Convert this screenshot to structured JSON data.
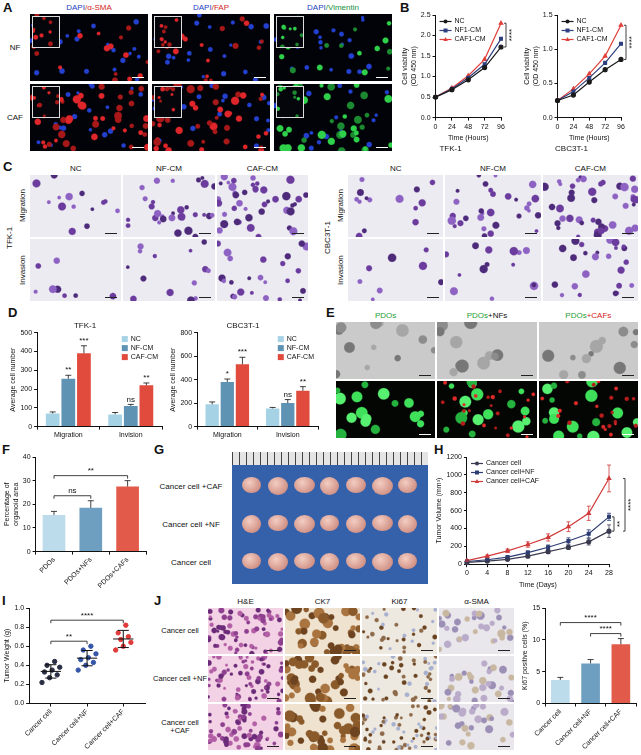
{
  "image_panels": [
    {
      "panel": "A",
      "type": "fluorescence",
      "columns": [
        "DAPI/α-SMA",
        "DAPI/FAP",
        "DAPI/Vimentin"
      ],
      "rows": [
        "NF",
        "CAF"
      ]
    },
    {
      "panel": "C",
      "type": "transwell",
      "groups": [
        {
          "name": "TFK-1",
          "columns": [
            "NC",
            "NF-CM",
            "CAF-CM"
          ],
          "rows": [
            "Migration",
            "Invasion"
          ]
        },
        {
          "name": "CBC3T-1",
          "columns": [
            "NC",
            "NF-CM",
            "CAF-CM"
          ],
          "rows": [
            "Migration",
            "Invasion"
          ]
        }
      ]
    },
    {
      "panel": "E",
      "type": "organoids",
      "columns": [
        "PDOs",
        "PDOs+NFs",
        "PDOs+CAFs"
      ]
    },
    {
      "panel": "G",
      "type": "tumor_photo",
      "rows": [
        "Cancer cell +CAF",
        "Cancer cell +NF",
        "Cancer cell"
      ]
    },
    {
      "panel": "J",
      "type": "ihc",
      "columns": [
        "H&E",
        "CK7",
        "Ki67",
        "α-SMA"
      ],
      "rows": [
        "Cancer cell",
        "Cancer cell +NF",
        "Cancer cell +CAF"
      ]
    }
  ],
  "chart_data": [
    {
      "panel": "B",
      "type": "line",
      "title": "TFK-1",
      "x_label": "Time (Hours)",
      "y_label": "Cell viability (OD 450 nm)",
      "x": [
        0,
        24,
        48,
        72,
        96
      ],
      "xlim": [
        0,
        96
      ],
      "xticks": [
        0,
        24,
        48,
        72,
        96
      ],
      "ylim": [
        0,
        2.5
      ],
      "yticks": [
        {
          "value": 0,
          "label": "0.0"
        },
        0.5,
        {
          "value": 1,
          "label": "1.0"
        },
        1.5,
        {
          "value": 2,
          "label": "2.0"
        },
        2.5
      ],
      "grid": false,
      "legend": "upper left",
      "series": [
        {
          "name": "NC",
          "color": "#1a1a1a",
          "marker": "circle",
          "values": [
            0.5,
            0.68,
            0.92,
            1.22,
            1.72
          ]
        },
        {
          "name": "NF1-CM",
          "color": "#2e3f7f",
          "marker": "square",
          "values": [
            0.5,
            0.7,
            0.97,
            1.3,
            1.92
          ]
        },
        {
          "name": "CAF1-CM",
          "color": "#e0403a",
          "marker": "triangle",
          "values": [
            0.5,
            0.72,
            1.02,
            1.42,
            2.3
          ]
        }
      ],
      "annotations": [
        {
          "text": "****",
          "between": [
            0,
            2
          ]
        }
      ]
    },
    {
      "type": "line",
      "title": "CBC3T-1",
      "x_label": "Time (Hours)",
      "y_label": "Cell viability (OD 450 nm)",
      "x": [
        0,
        24,
        48,
        72,
        96
      ],
      "xlim": [
        0,
        96
      ],
      "xticks": [
        0,
        24,
        48,
        72,
        96
      ],
      "ylim": [
        0,
        1.5
      ],
      "yticks": [
        {
          "value": 0,
          "label": "0.0"
        },
        0.5,
        {
          "value": 1,
          "label": "1.0"
        },
        1.5
      ],
      "grid": false,
      "legend": "upper left",
      "series": [
        {
          "name": "NC",
          "color": "#1a1a1a",
          "marker": "circle",
          "values": [
            0.25,
            0.33,
            0.52,
            0.7,
            0.85
          ]
        },
        {
          "name": "NF1-CM",
          "color": "#2e3f7f",
          "marker": "square",
          "values": [
            0.25,
            0.38,
            0.58,
            0.8,
            1.08
          ]
        },
        {
          "name": "CAF1-CM",
          "color": "#e0403a",
          "marker": "triangle",
          "values": [
            0.25,
            0.42,
            0.64,
            0.9,
            1.35
          ]
        }
      ],
      "annotations": [
        {
          "text": "****",
          "between": [
            0,
            2
          ]
        }
      ]
    },
    {
      "panel": "D",
      "type": "bar",
      "title": "TFK-1",
      "y_label": "Average cell number",
      "categories": [
        "Migration",
        "Invision"
      ],
      "ylim": [
        0,
        500
      ],
      "yticks": [
        0,
        100,
        200,
        300,
        400,
        500
      ],
      "grid": false,
      "legend": "upper right",
      "series": [
        {
          "name": "NC",
          "color": "#a6d2e6",
          "values": [
            70,
            65
          ],
          "errors": [
            8,
            10
          ]
        },
        {
          "name": "NF-CM",
          "color": "#5f93b3",
          "values": [
            255,
            110
          ],
          "errors": [
            18,
            8
          ]
        },
        {
          "name": "CAF-CM",
          "color": "#e04b3d",
          "values": [
            390,
            220
          ],
          "errors": [
            40,
            12
          ]
        }
      ],
      "annotations": [
        {
          "text": "**",
          "series": 1,
          "index": 0
        },
        {
          "text": "***",
          "series": 2,
          "index": 0
        },
        {
          "text": "ns",
          "series": 1,
          "index": 1
        },
        {
          "text": "**",
          "series": 2,
          "index": 1
        }
      ]
    },
    {
      "type": "bar",
      "title": "CBC3T-1",
      "y_label": "Average cell number",
      "categories": [
        "Migration",
        "Invision"
      ],
      "ylim": [
        0,
        800
      ],
      "yticks": [
        0,
        200,
        400,
        600,
        800
      ],
      "grid": false,
      "legend": "upper right",
      "series": [
        {
          "name": "NC",
          "color": "#a6d2e6",
          "values": [
            190,
            155
          ],
          "errors": [
            20,
            8
          ]
        },
        {
          "name": "NF-CM",
          "color": "#5f93b3",
          "values": [
            380,
            200
          ],
          "errors": [
            25,
            30
          ]
        },
        {
          "name": "CAF-CM",
          "color": "#e04b3d",
          "values": [
            530,
            305
          ],
          "errors": [
            60,
            35
          ]
        }
      ],
      "annotations": [
        {
          "text": "*",
          "series": 1,
          "index": 0
        },
        {
          "text": "***",
          "series": 2,
          "index": 0
        },
        {
          "text": "ns",
          "series": 1,
          "index": 1
        },
        {
          "text": "**",
          "series": 2,
          "index": 1
        }
      ]
    },
    {
      "panel": "F",
      "type": "bar",
      "y_label": "Percentage of organoid area",
      "categories": [
        "PDOs",
        "PDOs+NFs",
        "PDOs+CAFs"
      ],
      "values": [
        15.5,
        18.5,
        27.5
      ],
      "errors": [
        1.5,
        3,
        2.5
      ],
      "colors": [
        "#bcdcec",
        "#6f9fc0",
        "#e25a4a"
      ],
      "ylim": [
        0,
        40
      ],
      "yticks": [
        0,
        10,
        20,
        30,
        40
      ],
      "grid": false,
      "annotations": [
        {
          "text": "ns",
          "between": [
            0,
            1
          ]
        },
        {
          "text": "**",
          "between": [
            0,
            2
          ]
        }
      ]
    },
    {
      "panel": "H",
      "type": "line",
      "x_label": "Time (Days)",
      "y_label": "Tumor Volume (mm³)",
      "x": [
        0,
        4,
        8,
        12,
        16,
        20,
        24,
        28
      ],
      "xlim": [
        0,
        28
      ],
      "xticks": [
        0,
        4,
        8,
        12,
        16,
        20,
        24,
        28
      ],
      "ylim": [
        0,
        1200
      ],
      "yticks": [
        0,
        200,
        400,
        600,
        800,
        1000,
        1200
      ],
      "grid": false,
      "legend": "upper left",
      "series": [
        {
          "name": "Cancer cell",
          "color": "#3b3b4f",
          "marker": "circle",
          "values": [
            20,
            35,
            55,
            90,
            140,
            190,
            250,
            370
          ],
          "errors": [
            5,
            8,
            10,
            15,
            20,
            25,
            35,
            70
          ]
        },
        {
          "name": "Cancer cell+NF",
          "color": "#2d3e74",
          "marker": "square",
          "values": [
            30,
            50,
            80,
            130,
            190,
            260,
            340,
            530
          ],
          "errors": [
            5,
            8,
            12,
            18,
            25,
            35,
            45,
            40
          ]
        },
        {
          "name": "Cancer cell+CAF",
          "color": "#d03a3a",
          "marker": "triangle",
          "values": [
            40,
            90,
            150,
            220,
            300,
            420,
            570,
            960
          ],
          "errors": [
            8,
            12,
            20,
            30,
            40,
            55,
            80,
            150
          ]
        }
      ],
      "annotations": [
        {
          "text": "**",
          "between": [
            0,
            1
          ]
        },
        {
          "text": "****",
          "between": [
            0,
            2
          ]
        }
      ]
    },
    {
      "panel": "I",
      "type": "scatter",
      "y_label": "Tumor Weight (g)",
      "categories": [
        "Cancer cell",
        "Cancer cell+NF",
        "Cancer cell+CAF"
      ],
      "values": [
        [
          0.22,
          0.27,
          0.3,
          0.33,
          0.35,
          0.38,
          0.4,
          0.44
        ],
        [
          0.35,
          0.4,
          0.43,
          0.46,
          0.48,
          0.52,
          0.56,
          0.6
        ],
        [
          0.56,
          0.6,
          0.64,
          0.67,
          0.7,
          0.74,
          0.82
        ]
      ],
      "errors": [
        0.07,
        0.08,
        0.09
      ],
      "colors": [
        "#2a2f45",
        "#3556a8",
        "#e03a3a"
      ],
      "ylim": [
        0,
        1
      ],
      "yticks": [
        {
          "value": 0,
          "label": "0.0"
        },
        0.2,
        0.4,
        0.6,
        0.8,
        {
          "value": 1,
          "label": "1.0"
        }
      ],
      "grid": false,
      "annotations": [
        {
          "text": "**",
          "between": [
            0,
            1
          ]
        },
        {
          "text": "****",
          "between": [
            0,
            2
          ]
        }
      ]
    },
    {
      "type": "bar",
      "y_label": "Ki67 positive cells (%)",
      "categories": [
        "Cancer cell",
        "Cancer cell+NF",
        "Cancer cell+CAF"
      ],
      "values": [
        3.7,
        6.3,
        9.3
      ],
      "errors": [
        0.4,
        0.6,
        0.9
      ],
      "colors": [
        "#bcdcec",
        "#6f9fc0",
        "#e25a4a"
      ],
      "ylim": [
        0,
        15
      ],
      "yticks": [
        0,
        5,
        10,
        15
      ],
      "grid": false,
      "annotations": [
        {
          "text": "****",
          "between": [
            1,
            2
          ]
        },
        {
          "text": "****",
          "between": [
            0,
            2
          ]
        }
      ]
    }
  ]
}
